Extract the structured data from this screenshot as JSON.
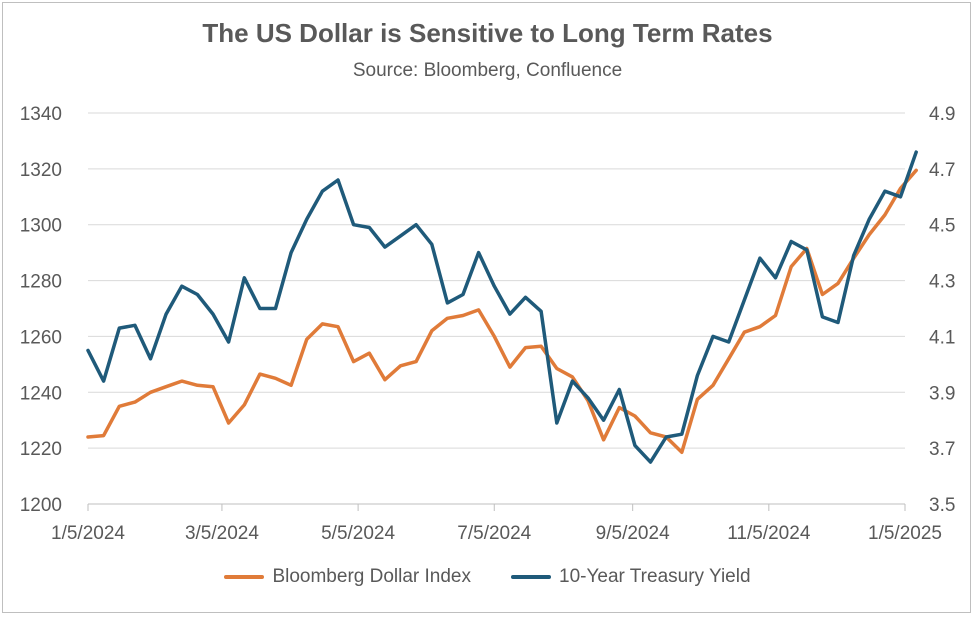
{
  "chart_data": {
    "type": "line",
    "title": "The US Dollar is Sensitive to Long Term Rates",
    "subtitle": "Source: Bloomberg, Confluence",
    "x_ticks": [
      "1/5/2024",
      "3/5/2024",
      "5/5/2024",
      "7/5/2024",
      "9/5/2024",
      "11/5/2024",
      "1/5/2025"
    ],
    "y_left": {
      "min": 1200,
      "max": 1340,
      "step": 20,
      "ticks": [
        "1200",
        "1220",
        "1240",
        "1260",
        "1280",
        "1300",
        "1320",
        "1340"
      ]
    },
    "y_right": {
      "min": 3.5,
      "max": 4.9,
      "step": 0.2,
      "ticks": [
        "3.5",
        "3.7",
        "3.9",
        "4.1",
        "4.3",
        "4.5",
        "4.7",
        "4.9"
      ]
    },
    "grid": "horizontal",
    "legend": "bottom",
    "x": [
      "2024-01-05",
      "2024-01-12",
      "2024-01-19",
      "2024-01-26",
      "2024-02-02",
      "2024-02-09",
      "2024-02-16",
      "2024-02-23",
      "2024-03-01",
      "2024-03-08",
      "2024-03-15",
      "2024-03-22",
      "2024-03-29",
      "2024-04-05",
      "2024-04-12",
      "2024-04-19",
      "2024-04-26",
      "2024-05-03",
      "2024-05-10",
      "2024-05-17",
      "2024-05-24",
      "2024-05-31",
      "2024-06-07",
      "2024-06-14",
      "2024-06-21",
      "2024-06-28",
      "2024-07-05",
      "2024-07-12",
      "2024-07-19",
      "2024-07-26",
      "2024-08-02",
      "2024-08-09",
      "2024-08-16",
      "2024-08-23",
      "2024-08-30",
      "2024-09-06",
      "2024-09-13",
      "2024-09-20",
      "2024-09-27",
      "2024-10-04",
      "2024-10-11",
      "2024-10-18",
      "2024-10-25",
      "2024-11-01",
      "2024-11-08",
      "2024-11-15",
      "2024-11-22",
      "2024-11-29",
      "2024-12-06",
      "2024-12-13",
      "2024-12-20",
      "2024-12-27",
      "2025-01-03",
      "2025-01-10"
    ],
    "series": [
      {
        "name": "Bloomberg Dollar Index",
        "axis": "left",
        "color": "#E07B39",
        "values": [
          1224,
          1224.5,
          1235,
          1236.5,
          1240,
          1242,
          1244,
          1242.5,
          1242,
          1229,
          1235.5,
          1246.5,
          1245,
          1242.5,
          1259,
          1264.5,
          1263.5,
          1251,
          1254,
          1244.5,
          1249.5,
          1251,
          1262,
          1266.5,
          1267.5,
          1269.5,
          1260,
          1249,
          1256,
          1256.5,
          1248.5,
          1245.5,
          1237,
          1223,
          1234.5,
          1231.5,
          1225.5,
          1224,
          1218.5,
          1237.5,
          1242.5,
          1252,
          1261.5,
          1263.5,
          1267.5,
          1285,
          1291.5,
          1275,
          1279,
          1288,
          1296.5,
          1303.5,
          1313,
          1319.5
        ]
      },
      {
        "name": "10-Year Treasury Yield",
        "axis": "right",
        "color": "#1F5A7A",
        "values": [
          4.05,
          3.94,
          4.13,
          4.14,
          4.02,
          4.18,
          4.28,
          4.25,
          4.18,
          4.08,
          4.31,
          4.2,
          4.2,
          4.4,
          4.52,
          4.62,
          4.66,
          4.5,
          4.49,
          4.42,
          4.46,
          4.5,
          4.43,
          4.22,
          4.25,
          4.4,
          4.28,
          4.18,
          4.24,
          4.19,
          3.79,
          3.94,
          3.88,
          3.8,
          3.91,
          3.71,
          3.65,
          3.74,
          3.75,
          3.96,
          4.1,
          4.08,
          4.23,
          4.38,
          4.31,
          4.44,
          4.41,
          4.17,
          4.15,
          4.39,
          4.52,
          4.62,
          4.6,
          4.76
        ]
      }
    ]
  }
}
